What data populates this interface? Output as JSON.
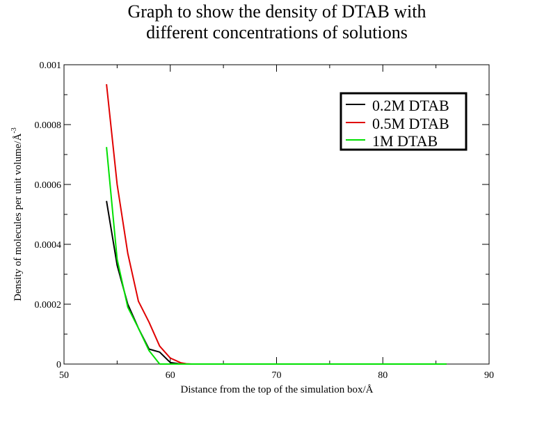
{
  "chart_data": {
    "type": "line",
    "title_lines": [
      "Graph to show the density of DTAB with",
      "different concentrations of solutions"
    ],
    "xlabel": "Distance from the top of the simulation box/Å",
    "ylabel": "Density of molecules per unit volume/Å",
    "ylabel_sup": "-3",
    "xlim": [
      50,
      90
    ],
    "ylim": [
      0,
      0.001
    ],
    "xticks": [
      50,
      60,
      70,
      80,
      90
    ],
    "xtick_labels": [
      "50",
      "60",
      "70",
      "80",
      "90"
    ],
    "yticks": [
      0,
      0.0002,
      0.0004,
      0.0006,
      0.0008,
      0.001
    ],
    "ytick_labels": [
      "0",
      "0.0002",
      "0.0004",
      "0.0006",
      "0.0008",
      "0.001"
    ],
    "grid": false,
    "legend_position": "top-right",
    "series": [
      {
        "name": "0.2M DTAB",
        "color": "#000000",
        "x": [
          54,
          55,
          56,
          57,
          58,
          59,
          60,
          61
        ],
        "y": [
          0.000545,
          0.00033,
          0.0002,
          0.00012,
          5e-05,
          4e-05,
          5e-06,
          0
        ]
      },
      {
        "name": "0.5M DTAB",
        "color": "#e00000",
        "x": [
          54,
          55,
          56,
          57,
          58,
          59,
          60,
          61,
          61.5,
          62,
          70,
          80,
          86
        ],
        "y": [
          0.000935,
          0.0006,
          0.00037,
          0.00021,
          0.00014,
          6e-05,
          2e-05,
          4e-06,
          1e-06,
          0,
          0,
          0,
          0
        ]
      },
      {
        "name": "1M DTAB",
        "color": "#00e000",
        "x": [
          54,
          55,
          56,
          57,
          58,
          59,
          59.5,
          60,
          70,
          80,
          86
        ],
        "y": [
          0.000725,
          0.00035,
          0.00019,
          0.00012,
          4.5e-05,
          0,
          0,
          0,
          0,
          0,
          0
        ]
      }
    ]
  }
}
